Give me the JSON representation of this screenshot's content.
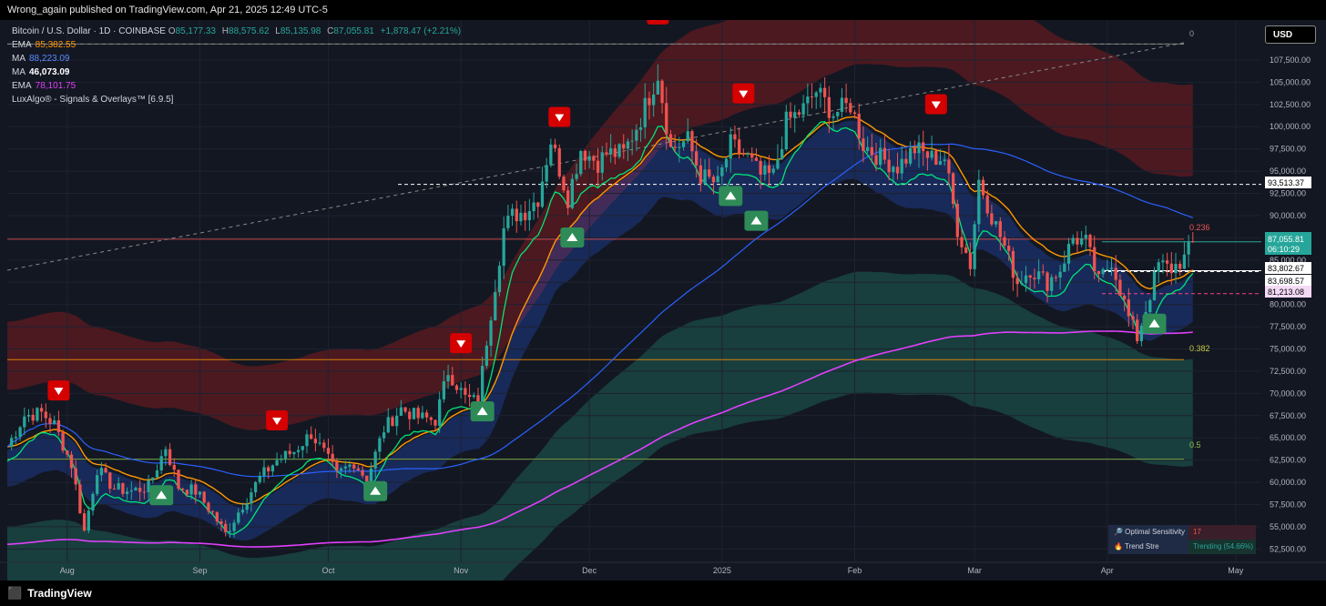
{
  "header": {
    "publisher_line": "Wrong_again published on TradingView.com, Apr 21, 2025 12:49 UTC-5"
  },
  "footer": {
    "brand": "TradingView"
  },
  "legend": {
    "symbol": "Bitcoin / U.S. Dollar · 1D · COINBASE",
    "o_label": "O",
    "o_value": "85,177.33",
    "h_label": "H",
    "h_value": "88,575.62",
    "l_label": "L",
    "l_value": "85,135.98",
    "c_label": "C",
    "c_value": "87,055.81",
    "change": "+1,878.47 (+2.21%)",
    "indicators": [
      {
        "name": "EMA",
        "value": "85,382.55",
        "color": "#ff9800"
      },
      {
        "name": "MA",
        "value": "88,223.09",
        "color": "#2962ff"
      },
      {
        "name": "MA",
        "value": "46,073.09",
        "color": "#ffffff"
      },
      {
        "name": "EMA",
        "value": "78,101.75",
        "color": "#e040fb"
      },
      {
        "name": "LuxAlgo® - Signals & Overlays™ [6.9.5]",
        "value": "",
        "color": "#d1d4dc"
      }
    ]
  },
  "currency_button": "USD",
  "info_table": {
    "row1_label": "🔎 Optimal Sensitivity",
    "row1_value": "17",
    "row2_label": "🔥 Trend Stre",
    "row2_value": "Trending (54.66%)"
  },
  "price_badges": {
    "current_price": "87,055.81",
    "countdown": "06:10:29",
    "level_93k": "93,513.37",
    "level_83k8": "83,802.67",
    "level_83k6": "83,698.57",
    "level_81k": "81,213.08"
  },
  "fib_labels": {
    "top": "0",
    "f236": "0.236",
    "f382": "0.382",
    "f5": "0.5"
  },
  "colors": {
    "background": "#131722",
    "up": "#26a69a",
    "down": "#ef5350",
    "ema_short": "#ff9800",
    "ma_long": "#2962ff",
    "ema_long": "#e040fb",
    "signal_buy": "#2e8b57",
    "signal_sell": "#d50000"
  },
  "chart_data": {
    "type": "candlestick",
    "title": "Bitcoin / U.S. Dollar · 1D · COINBASE",
    "ylim": [
      51000,
      112000
    ],
    "x_range": [
      "2024-07-18",
      "2025-05-07"
    ],
    "y_ticks": [
      "107,500.00",
      "105,000.00",
      "102,500.00",
      "100,000.00",
      "97,500.00",
      "95,000.00",
      "92,500.00",
      "90,000.00",
      "87,500.00",
      "85,000.00",
      "82,500.00",
      "80,000.00",
      "77,500.00",
      "75,000.00",
      "72,500.00",
      "70,000.00",
      "67,500.00",
      "65,000.00",
      "62,500.00",
      "60,000.00",
      "57,500.00",
      "55,000.00",
      "52,500.00"
    ],
    "x_ticks": [
      {
        "label": "Aug",
        "date": "2024-08-01"
      },
      {
        "label": "Sep",
        "date": "2024-09-01"
      },
      {
        "label": "Oct",
        "date": "2024-10-01"
      },
      {
        "label": "Nov",
        "date": "2024-11-01"
      },
      {
        "label": "Dec",
        "date": "2024-12-01"
      },
      {
        "label": "2025",
        "date": "2025-01-01"
      },
      {
        "label": "Feb",
        "date": "2025-02-01"
      },
      {
        "label": "Mar",
        "date": "2025-03-01"
      },
      {
        "label": "Apr",
        "date": "2025-04-01"
      },
      {
        "label": "May",
        "date": "2025-05-01"
      }
    ],
    "close_series": [
      [
        "2024-07-18",
        64000
      ],
      [
        "2024-07-22",
        67500
      ],
      [
        "2024-07-26",
        67800
      ],
      [
        "2024-07-29",
        66500
      ],
      [
        "2024-08-02",
        62000
      ],
      [
        "2024-08-05",
        54500
      ],
      [
        "2024-08-08",
        61500
      ],
      [
        "2024-08-12",
        59300
      ],
      [
        "2024-08-16",
        59000
      ],
      [
        "2024-08-20",
        59500
      ],
      [
        "2024-08-24",
        64000
      ],
      [
        "2024-08-27",
        59500
      ],
      [
        "2024-08-31",
        59000
      ],
      [
        "2024-09-04",
        56500
      ],
      [
        "2024-09-07",
        54200
      ],
      [
        "2024-09-11",
        57500
      ],
      [
        "2024-09-15",
        60500
      ],
      [
        "2024-09-19",
        62500
      ],
      [
        "2024-09-23",
        63500
      ],
      [
        "2024-09-27",
        65500
      ],
      [
        "2024-09-30",
        63300
      ],
      [
        "2024-10-03",
        60800
      ],
      [
        "2024-10-07",
        62300
      ],
      [
        "2024-10-10",
        60300
      ],
      [
        "2024-10-14",
        66000
      ],
      [
        "2024-10-18",
        68300
      ],
      [
        "2024-10-22",
        67300
      ],
      [
        "2024-10-26",
        67000
      ],
      [
        "2024-10-29",
        72500
      ],
      [
        "2024-11-02",
        69500
      ],
      [
        "2024-11-05",
        69000
      ],
      [
        "2024-11-07",
        76000
      ],
      [
        "2024-11-11",
        88500
      ],
      [
        "2024-11-13",
        90000
      ],
      [
        "2024-11-16",
        90500
      ],
      [
        "2024-11-19",
        92000
      ],
      [
        "2024-11-22",
        98500
      ],
      [
        "2024-11-26",
        92000
      ],
      [
        "2024-11-29",
        97500
      ],
      [
        "2024-12-03",
        96000
      ],
      [
        "2024-12-05",
        97000
      ],
      [
        "2024-12-09",
        97000
      ],
      [
        "2024-12-13",
        101000
      ],
      [
        "2024-12-17",
        106000
      ],
      [
        "2024-12-20",
        97500
      ],
      [
        "2024-12-24",
        98500
      ],
      [
        "2024-12-27",
        94500
      ],
      [
        "2024-12-31",
        93500
      ],
      [
        "2025-01-03",
        98000
      ],
      [
        "2025-01-07",
        96500
      ],
      [
        "2025-01-10",
        94500
      ],
      [
        "2025-01-13",
        94500
      ],
      [
        "2025-01-16",
        100500
      ],
      [
        "2025-01-20",
        102000
      ],
      [
        "2025-01-23",
        104000
      ],
      [
        "2025-01-27",
        101500
      ],
      [
        "2025-01-31",
        102500
      ],
      [
        "2025-02-03",
        98000
      ],
      [
        "2025-02-07",
        96500
      ],
      [
        "2025-02-11",
        95500
      ],
      [
        "2025-02-15",
        97500
      ],
      [
        "2025-02-19",
        96500
      ],
      [
        "2025-02-22",
        96500
      ],
      [
        "2025-02-25",
        88500
      ],
      [
        "2025-02-28",
        84500
      ],
      [
        "2025-03-02",
        94000
      ],
      [
        "2025-03-05",
        90000
      ],
      [
        "2025-03-08",
        86500
      ],
      [
        "2025-03-11",
        82500
      ],
      [
        "2025-03-14",
        84000
      ],
      [
        "2025-03-18",
        82500
      ],
      [
        "2025-03-21",
        84000
      ],
      [
        "2025-03-24",
        87500
      ],
      [
        "2025-03-27",
        87000
      ],
      [
        "2025-03-30",
        82500
      ],
      [
        "2025-04-02",
        85000
      ],
      [
        "2025-04-06",
        78500
      ],
      [
        "2025-04-08",
        76300
      ],
      [
        "2025-04-10",
        79500
      ],
      [
        "2025-04-13",
        84500
      ],
      [
        "2025-04-16",
        84000
      ],
      [
        "2025-04-19",
        85177
      ],
      [
        "2025-04-21",
        87056
      ]
    ],
    "horizontal_levels": [
      {
        "price": 93513.37,
        "style": "dashed",
        "color": "#ffffff"
      },
      {
        "price": 87055.81,
        "style": "solid",
        "color": "#26a69a"
      },
      {
        "price": 83802.67,
        "style": "solid",
        "color": "#ffffff"
      },
      {
        "price": 83698.57,
        "style": "dashed",
        "color": "#ffffff"
      },
      {
        "price": 81213.08,
        "style": "dashed",
        "color": "#ff4081"
      }
    ],
    "fib_levels": [
      {
        "label": "0",
        "price": 109300
      },
      {
        "label": "0.236",
        "price": 87350
      },
      {
        "label": "0.382",
        "price": 73800
      },
      {
        "label": "0.5",
        "price": 62600
      }
    ],
    "signals": [
      {
        "date": "2024-07-30",
        "dir": "sell"
      },
      {
        "date": "2024-08-23",
        "dir": "buy"
      },
      {
        "date": "2024-09-19",
        "dir": "sell"
      },
      {
        "date": "2024-10-12",
        "dir": "buy"
      },
      {
        "date": "2024-11-01",
        "dir": "sell"
      },
      {
        "date": "2024-11-06",
        "dir": "buy"
      },
      {
        "date": "2024-11-24",
        "dir": "sell"
      },
      {
        "date": "2024-11-27",
        "dir": "buy"
      },
      {
        "date": "2024-12-17",
        "dir": "sell"
      },
      {
        "date": "2025-01-03",
        "dir": "buy"
      },
      {
        "date": "2025-01-06",
        "dir": "sell"
      },
      {
        "date": "2025-01-09",
        "dir": "buy"
      },
      {
        "date": "2025-02-20",
        "dir": "sell"
      },
      {
        "date": "2025-04-12",
        "dir": "buy"
      }
    ]
  }
}
